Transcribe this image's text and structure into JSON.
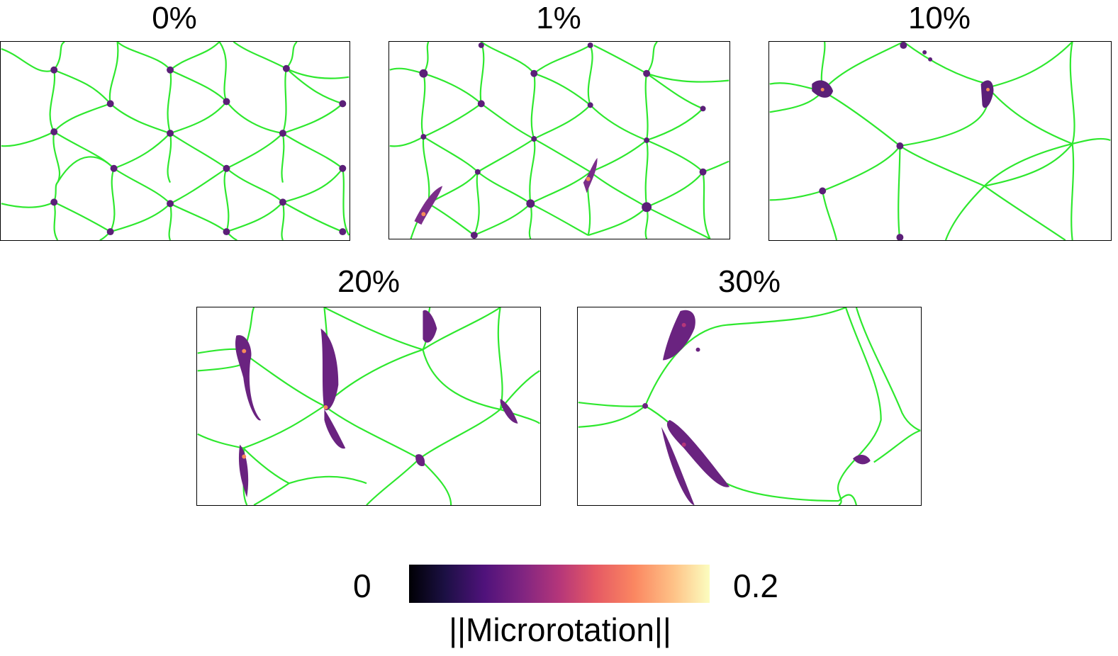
{
  "panels": [
    {
      "id": "p0",
      "label": "0%"
    },
    {
      "id": "p1",
      "label": "1%"
    },
    {
      "id": "p10",
      "label": "10%"
    },
    {
      "id": "p20",
      "label": "20%"
    },
    {
      "id": "p30",
      "label": "30%"
    }
  ],
  "colorbar": {
    "min_label": "0",
    "max_label": "0.2",
    "label": "||Microrotation||",
    "colormap": "magma"
  },
  "colors": {
    "grain_boundary": "#2ee82e",
    "hotspot_dark": "#4a1a6b",
    "hotspot_mid": "#7b2d8a",
    "hotspot_high": "#f58a5a"
  }
}
